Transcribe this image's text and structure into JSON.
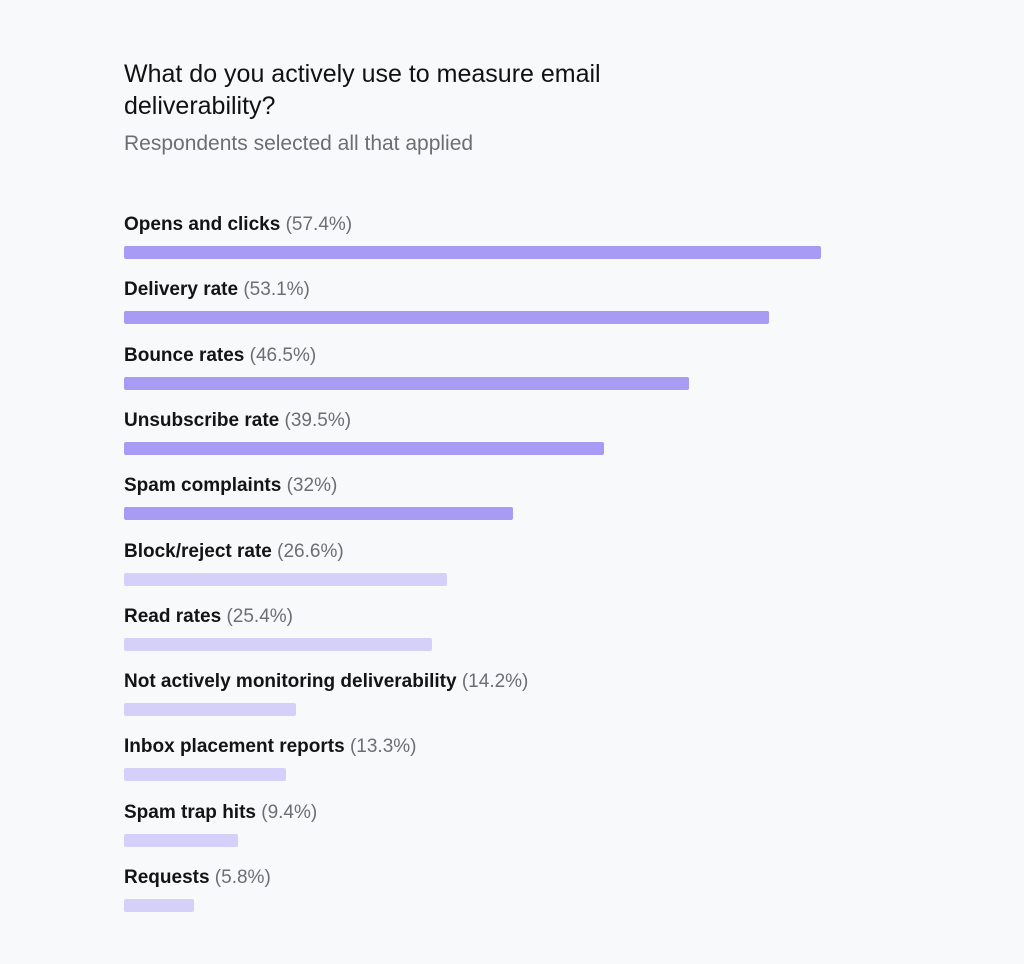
{
  "colors": {
    "primary_bar": "#a79bf6",
    "secondary_bar": "#d5d0fa"
  },
  "chart_data": {
    "type": "bar",
    "orientation": "horizontal",
    "title": "What do you actively use to measure email deliverability?",
    "subtitle": "Respondents selected all that applied",
    "categories": [
      "Opens and clicks",
      "Delivery rate",
      "Bounce rates",
      "Unsubscribe rate",
      "Spam complaints",
      "Block/reject rate",
      "Read rates",
      "Not actively monitoring deliverability",
      "Inbox placement reports",
      "Spam trap hits",
      "Requests"
    ],
    "value_labels": [
      "(57.4%)",
      "(53.1%)",
      "(46.5%)",
      "(39.5%)",
      "(32%)",
      "(26.6%)",
      "(25.4%)",
      "(14.2%)",
      "(13.3%)",
      "(9.4%)",
      "(5.8%)"
    ],
    "values": [
      57.4,
      53.1,
      46.5,
      39.5,
      32,
      26.6,
      25.4,
      14.2,
      13.3,
      9.4,
      5.8
    ],
    "highlighted_top_count": 5,
    "grid": false,
    "legend": "none"
  }
}
